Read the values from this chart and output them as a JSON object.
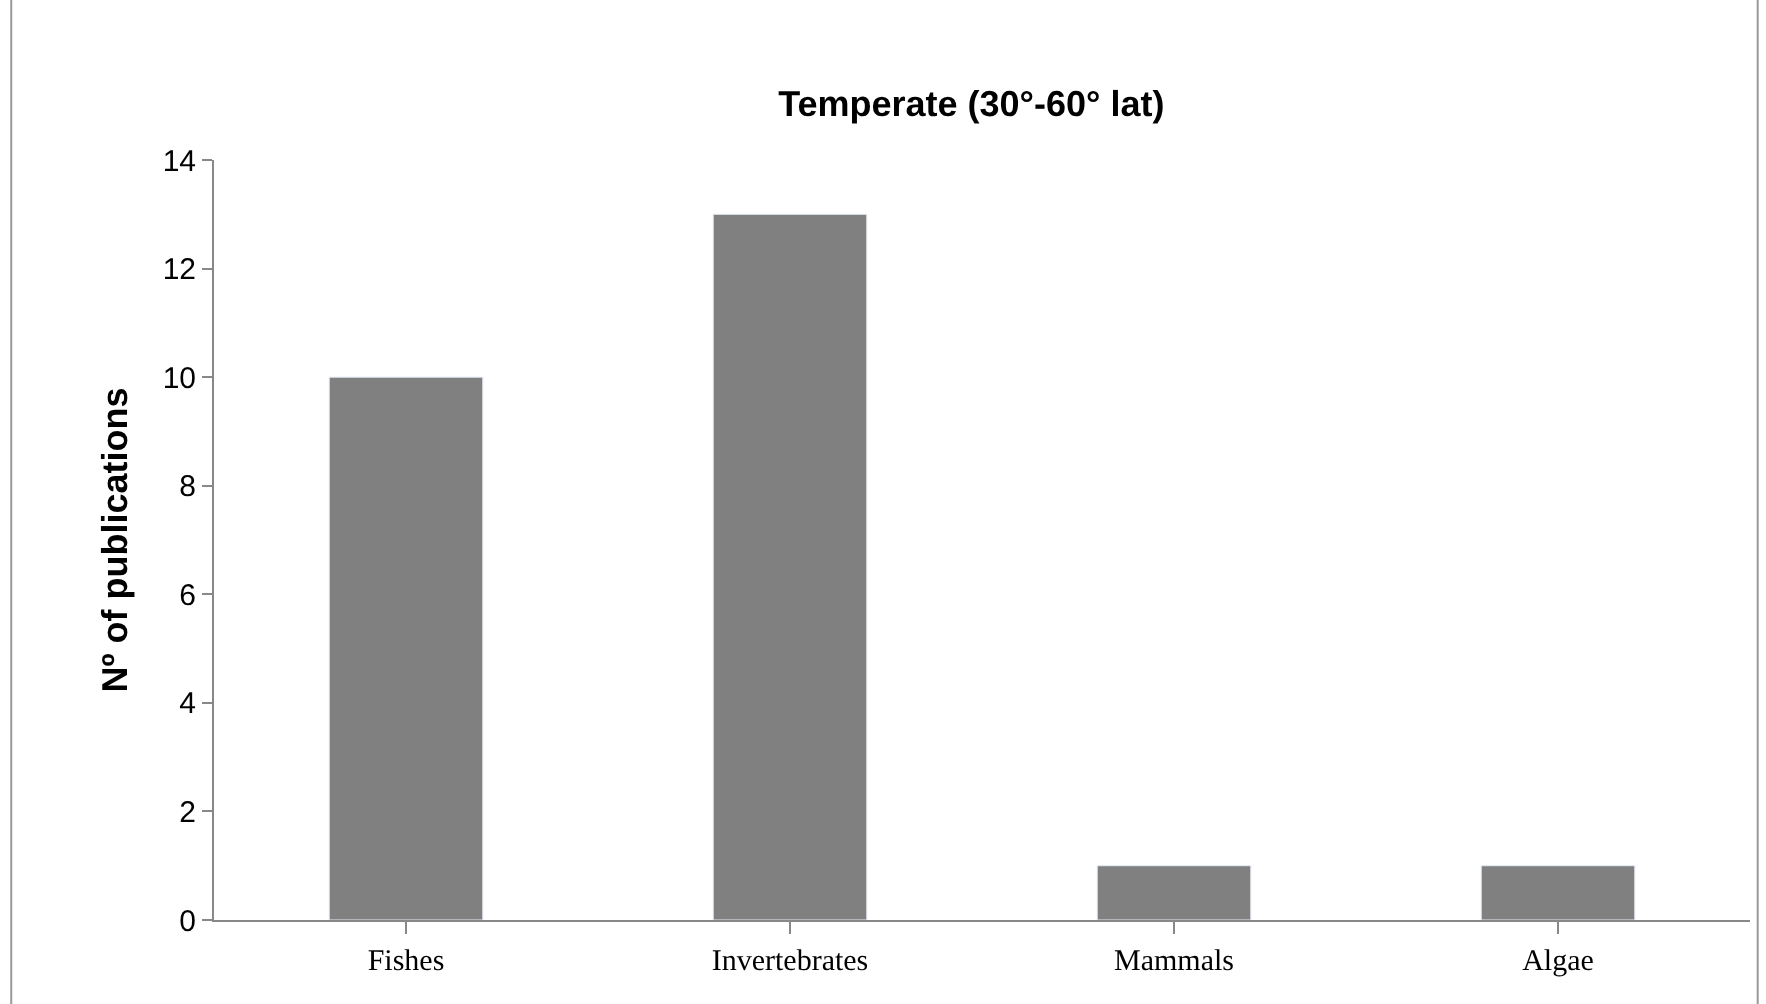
{
  "chart_data": {
    "type": "bar",
    "title": "Temperate (30°-60° lat)",
    "ylabel": "Nº of publications",
    "categories": [
      "Fishes",
      "Invertebrates",
      "Mammals",
      "Algae"
    ],
    "values": [
      10,
      13,
      1,
      1
    ],
    "color": "#808080",
    "ylim": [
      0,
      14
    ],
    "yticks": [
      0,
      2,
      4,
      6,
      8,
      10,
      12,
      14
    ]
  }
}
